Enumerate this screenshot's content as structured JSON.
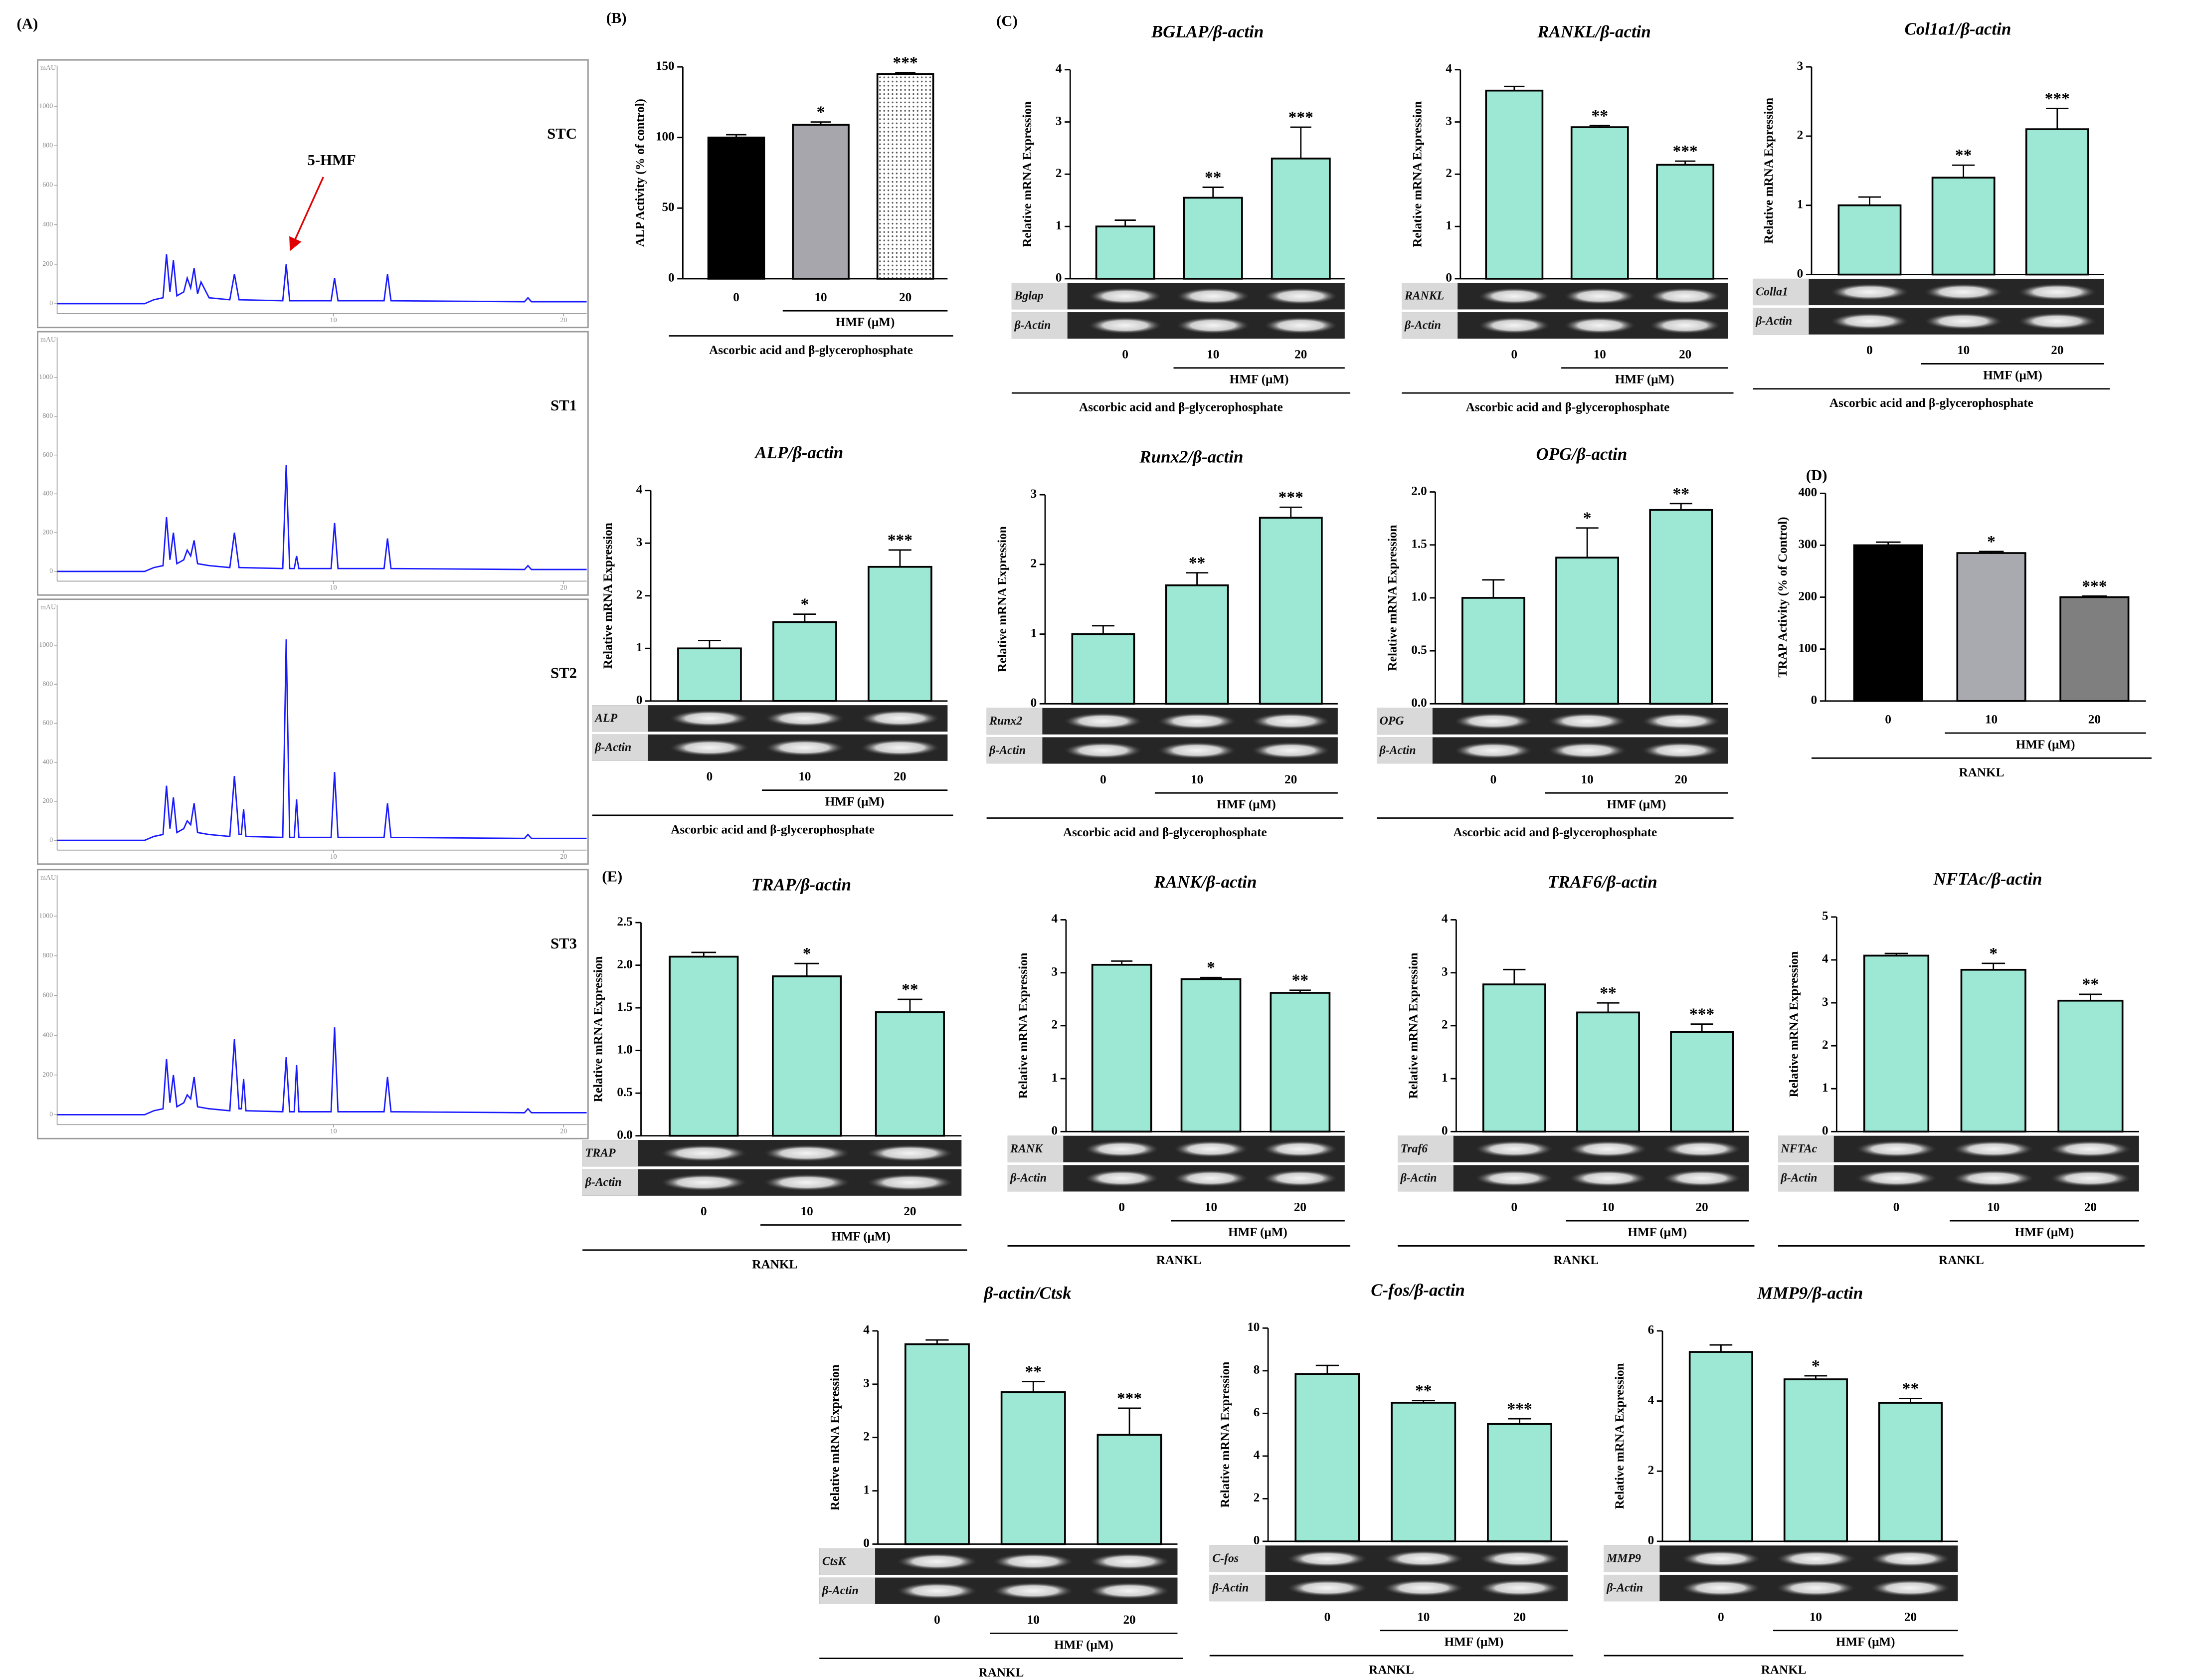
{
  "chart_data": [
    {
      "type": "line",
      "panel": "(A)",
      "title": "STC",
      "ylabel": "mAU",
      "annotation": "5-HMF",
      "xlim": [
        -2,
        21
      ],
      "xticks": [
        10,
        20
      ],
      "ylim": [
        -50,
        1150
      ],
      "yticks": [
        0,
        200,
        400,
        600,
        800,
        1000
      ],
      "x": [
        -2,
        1.8,
        2.2,
        2.6,
        2.75,
        2.9,
        3.05,
        3.2,
        3.5,
        3.65,
        3.8,
        3.95,
        4.1,
        4.25,
        4.6,
        5.5,
        5.7,
        5.9,
        7.8,
        7.95,
        8.1,
        9.9,
        10.05,
        10.2,
        12.2,
        12.35,
        12.5,
        18.3,
        18.45,
        18.6,
        21
      ],
      "series": [
        {
          "color": "#1a1aff",
          "values": [
            0,
            0,
            20,
            30,
            250,
            60,
            220,
            40,
            60,
            130,
            80,
            180,
            50,
            110,
            30,
            20,
            150,
            20,
            15,
            200,
            15,
            15,
            130,
            15,
            15,
            150,
            15,
            10,
            30,
            10,
            10
          ]
        }
      ]
    },
    {
      "type": "line",
      "title": "ST1",
      "ylabel": "mAU",
      "xlim": [
        -2,
        21
      ],
      "xticks": [
        10,
        20
      ],
      "ylim": [
        -50,
        1150
      ],
      "yticks": [
        0,
        200,
        400,
        600,
        800,
        1000
      ],
      "x": [
        -2,
        1.8,
        2.2,
        2.6,
        2.75,
        2.9,
        3.05,
        3.2,
        3.5,
        3.65,
        3.8,
        3.95,
        4.1,
        4.6,
        5.5,
        5.7,
        5.9,
        7.8,
        7.95,
        8.1,
        8.3,
        8.4,
        8.5,
        9.9,
        10.05,
        10.2,
        12.2,
        12.35,
        12.5,
        18.3,
        18.45,
        18.6,
        21
      ],
      "series": [
        {
          "color": "#1a1aff",
          "values": [
            0,
            0,
            20,
            30,
            280,
            60,
            200,
            40,
            60,
            110,
            80,
            160,
            40,
            30,
            20,
            200,
            20,
            15,
            550,
            15,
            15,
            80,
            15,
            15,
            250,
            15,
            15,
            170,
            15,
            10,
            30,
            10,
            10
          ]
        }
      ]
    },
    {
      "type": "line",
      "title": "ST2",
      "ylabel": "mAU",
      "xlim": [
        -2,
        21
      ],
      "xticks": [
        10,
        20
      ],
      "ylim": [
        -50,
        1150
      ],
      "yticks": [
        0,
        200,
        400,
        600,
        800,
        1000
      ],
      "x": [
        -2,
        1.8,
        2.2,
        2.6,
        2.75,
        2.9,
        3.05,
        3.2,
        3.5,
        3.65,
        3.8,
        3.95,
        4.1,
        4.6,
        5.5,
        5.7,
        5.9,
        6.0,
        6.1,
        6.2,
        7.8,
        7.95,
        8.1,
        8.3,
        8.4,
        8.5,
        9.9,
        10.05,
        10.2,
        12.2,
        12.35,
        12.5,
        18.3,
        18.45,
        18.6,
        21
      ],
      "series": [
        {
          "color": "#1a1aff",
          "values": [
            0,
            0,
            20,
            30,
            280,
            60,
            220,
            40,
            60,
            100,
            80,
            190,
            40,
            30,
            20,
            330,
            30,
            30,
            160,
            20,
            15,
            1030,
            15,
            15,
            210,
            15,
            15,
            350,
            15,
            15,
            190,
            15,
            10,
            30,
            10,
            10
          ]
        }
      ]
    },
    {
      "type": "line",
      "title": "ST3",
      "ylabel": "mAU",
      "xlim": [
        -2,
        21
      ],
      "xticks": [
        10,
        20
      ],
      "ylim": [
        -50,
        1150
      ],
      "yticks": [
        0,
        200,
        400,
        600,
        800,
        1000
      ],
      "x": [
        -2,
        1.8,
        2.2,
        2.6,
        2.75,
        2.9,
        3.05,
        3.2,
        3.5,
        3.65,
        3.8,
        3.95,
        4.1,
        4.6,
        5.5,
        5.7,
        5.9,
        6.0,
        6.1,
        6.2,
        7.8,
        7.95,
        8.1,
        8.3,
        8.4,
        8.5,
        9.9,
        10.05,
        10.2,
        12.2,
        12.35,
        12.5,
        18.3,
        18.45,
        18.6,
        21
      ],
      "series": [
        {
          "color": "#1a1aff",
          "values": [
            0,
            0,
            20,
            30,
            280,
            60,
            200,
            40,
            60,
            100,
            80,
            190,
            40,
            30,
            20,
            380,
            30,
            30,
            180,
            20,
            15,
            290,
            15,
            15,
            250,
            15,
            15,
            440,
            15,
            15,
            190,
            15,
            10,
            30,
            10,
            10
          ]
        }
      ]
    },
    {
      "type": "bar",
      "panel": "(B)",
      "ylabel": "ALP Activity (% of control)",
      "categories": [
        "0",
        "10",
        "20"
      ],
      "values": [
        100,
        109,
        145
      ],
      "errors": [
        2,
        2,
        1
      ],
      "significance": [
        null,
        "*",
        "***"
      ],
      "colors": [
        "#000000",
        "#a6a6ac",
        "#ffffff"
      ],
      "patterns": [
        null,
        null,
        "dots"
      ],
      "ylim": [
        0,
        150
      ],
      "yticks": [
        0,
        50,
        100,
        150
      ],
      "groups": [
        "HMF (μM)",
        "Ascorbic acid and β-glycerophosphate"
      ]
    },
    {
      "type": "bar",
      "panel": "(C)",
      "title": "BGLAP/β-actin",
      "ylabel": "Relative mRNA Expression",
      "categories": [
        "0",
        "10",
        "20"
      ],
      "values": [
        1,
        1.55,
        2.3
      ],
      "errors": [
        0.12,
        0.2,
        0.6
      ],
      "significance": [
        null,
        "**",
        "***"
      ],
      "color": "#9de8d4",
      "ylim": [
        0,
        4
      ],
      "yticks": [
        0,
        1,
        2,
        3,
        4
      ],
      "gel_labels": [
        "Bglap",
        "β-Actin"
      ],
      "groups": [
        "HMF (μM)",
        "Ascorbic acid and β-glycerophosphate"
      ]
    },
    {
      "type": "bar",
      "title": "RANKL/β-actin",
      "ylabel": "Relative mRNA Expression",
      "categories": [
        "0",
        "10",
        "20"
      ],
      "values": [
        3.6,
        2.9,
        2.18
      ],
      "errors": [
        0.08,
        0.03,
        0.07
      ],
      "significance": [
        null,
        "**",
        "***"
      ],
      "color": "#9de8d4",
      "ylim": [
        0,
        4
      ],
      "yticks": [
        0,
        1,
        2,
        3,
        4
      ],
      "gel_labels": [
        "RANKL",
        "β-Actin"
      ],
      "groups": [
        "HMF (μM)",
        "Ascorbic acid and β-glycerophosphate"
      ]
    },
    {
      "type": "bar",
      "title": "Col1a1/β-actin",
      "ylabel": "Relative mRNA Expression",
      "categories": [
        "0",
        "10",
        "20"
      ],
      "values": [
        1,
        1.4,
        2.1
      ],
      "errors": [
        0.12,
        0.18,
        0.3
      ],
      "significance": [
        null,
        "**",
        "***"
      ],
      "color": "#9de8d4",
      "ylim": [
        0,
        3
      ],
      "yticks": [
        0,
        1,
        2,
        3
      ],
      "gel_labels": [
        "Colla1",
        "β-Actin"
      ],
      "groups": [
        "HMF (μM)",
        "Ascorbic acid and β-glycerophosphate"
      ]
    },
    {
      "type": "bar",
      "title": "ALP/β-actin",
      "ylabel": "Relative mRNA Expression",
      "categories": [
        "0",
        "10",
        "20"
      ],
      "values": [
        1,
        1.5,
        2.55
      ],
      "errors": [
        0.15,
        0.15,
        0.32
      ],
      "significance": [
        null,
        "*",
        "***"
      ],
      "color": "#9de8d4",
      "ylim": [
        0,
        4
      ],
      "yticks": [
        0,
        1,
        2,
        3,
        4
      ],
      "gel_labels": [
        "ALP",
        "β-Actin"
      ],
      "groups": [
        "HMF (μM)",
        "Ascorbic acid and β-glycerophosphate"
      ]
    },
    {
      "type": "bar",
      "title": "Runx2/β-actin",
      "ylabel": "Relative mRNA Expression",
      "categories": [
        "0",
        "10",
        "20"
      ],
      "values": [
        1,
        1.7,
        2.67
      ],
      "errors": [
        0.12,
        0.18,
        0.15
      ],
      "significance": [
        null,
        "**",
        "***"
      ],
      "color": "#9de8d4",
      "ylim": [
        0,
        3
      ],
      "yticks": [
        0,
        1,
        2,
        3
      ],
      "gel_labels": [
        "Runx2",
        "β-Actin"
      ],
      "groups": [
        "HMF (μM)",
        "Ascorbic acid and β-glycerophosphate"
      ]
    },
    {
      "type": "bar",
      "title": "OPG/β-actin",
      "ylabel": "Relative mRNA Expression",
      "categories": [
        "0",
        "10",
        "20"
      ],
      "values": [
        1,
        1.38,
        1.83
      ],
      "errors": [
        0.17,
        0.28,
        0.06
      ],
      "significance": [
        null,
        "*",
        "**"
      ],
      "color": "#9de8d4",
      "ylim": [
        0,
        2
      ],
      "yticks": [
        {
          "value": 0,
          "label": "0.0"
        },
        0.5,
        {
          "value": 1,
          "label": "1.0"
        },
        1.5,
        {
          "value": 2,
          "label": "2.0"
        }
      ],
      "gel_labels": [
        "OPG",
        "β-Actin"
      ],
      "groups": [
        "HMF (μM)",
        "Ascorbic acid and β-glycerophosphate"
      ]
    },
    {
      "type": "bar",
      "panel": "(D)",
      "ylabel": "TRAP Activity (% of Control)",
      "categories": [
        "0",
        "10",
        "20"
      ],
      "values": [
        300,
        285,
        200
      ],
      "errors": [
        6,
        3,
        2
      ],
      "significance": [
        null,
        "*",
        "***"
      ],
      "colors": [
        "#000000",
        "#a9a9b0",
        "#7f7f7f"
      ],
      "ylim": [
        0,
        400
      ],
      "yticks": [
        0,
        100,
        200,
        300,
        400
      ],
      "groups": [
        "HMF (μM)",
        "RANKL"
      ]
    },
    {
      "type": "bar",
      "panel": "(E)",
      "title": "TRAP/β-actin",
      "ylabel": "Relative mRNA Expression",
      "categories": [
        "0",
        "10",
        "20"
      ],
      "values": [
        2.1,
        1.87,
        1.45
      ],
      "errors": [
        0.05,
        0.15,
        0.15
      ],
      "significance": [
        null,
        "*",
        "**"
      ],
      "color": "#9de8d4",
      "ylim": [
        0,
        2.5
      ],
      "yticks": [
        {
          "value": 0,
          "label": "0.0"
        },
        0.5,
        {
          "value": 1,
          "label": "1.0"
        },
        1.5,
        {
          "value": 2,
          "label": "2.0"
        },
        2.5
      ],
      "gel_labels": [
        "TRAP",
        "β-Actin"
      ],
      "groups": [
        "HMF (μM)",
        "RANKL"
      ]
    },
    {
      "type": "bar",
      "title": "RANK/β-actin",
      "ylabel": "Relative mRNA Expression",
      "categories": [
        "0",
        "10",
        "20"
      ],
      "values": [
        3.15,
        2.88,
        2.62
      ],
      "errors": [
        0.07,
        0.03,
        0.05
      ],
      "significance": [
        null,
        "*",
        "**"
      ],
      "color": "#9de8d4",
      "ylim": [
        0,
        4
      ],
      "yticks": [
        0,
        1,
        2,
        3,
        4
      ],
      "gel_labels": [
        "RANK",
        "β-Actin"
      ],
      "groups": [
        "HMF (μM)",
        "RANKL"
      ]
    },
    {
      "type": "bar",
      "title": "TRAF6/β-actin",
      "ylabel": "Relative mRNA Expression",
      "categories": [
        "0",
        "10",
        "20"
      ],
      "values": [
        2.78,
        2.25,
        1.88
      ],
      "errors": [
        0.28,
        0.18,
        0.15
      ],
      "significance": [
        null,
        "**",
        "***"
      ],
      "color": "#9de8d4",
      "ylim": [
        0,
        4
      ],
      "yticks": [
        0,
        1,
        2,
        3,
        4
      ],
      "gel_labels": [
        "Traf6",
        "β-Actin"
      ],
      "groups": [
        "HMF (μM)",
        "RANKL"
      ]
    },
    {
      "type": "bar",
      "title": "NFTAc/β-actin",
      "ylabel": "Relative mRNA Expression",
      "categories": [
        "0",
        "10",
        "20"
      ],
      "values": [
        4.1,
        3.77,
        3.05
      ],
      "errors": [
        0.05,
        0.15,
        0.15
      ],
      "significance": [
        null,
        "*",
        "**"
      ],
      "color": "#9de8d4",
      "ylim": [
        0,
        5
      ],
      "yticks": [
        0,
        1,
        2,
        3,
        4,
        5
      ],
      "gel_labels": [
        "NFTAc",
        "β-Actin"
      ],
      "groups": [
        "HMF (μM)",
        "RANKL"
      ]
    },
    {
      "type": "bar",
      "title": "β-actin/Ctsk",
      "ylabel": "Relative mRNA Expression",
      "categories": [
        "0",
        "10",
        "20"
      ],
      "values": [
        3.75,
        2.85,
        2.05
      ],
      "errors": [
        0.08,
        0.2,
        0.5
      ],
      "significance": [
        null,
        "**",
        "***"
      ],
      "color": "#9de8d4",
      "ylim": [
        0,
        4
      ],
      "yticks": [
        0,
        1,
        2,
        3,
        4
      ],
      "gel_labels": [
        "CtsK",
        "β-Actin"
      ],
      "groups": [
        "HMF (μM)",
        "RANKL"
      ]
    },
    {
      "type": "bar",
      "title": "C-fos/β-actin",
      "ylabel": "Relative mRNA Expression",
      "categories": [
        "0",
        "10",
        "20"
      ],
      "values": [
        7.85,
        6.5,
        5.5
      ],
      "errors": [
        0.4,
        0.1,
        0.25
      ],
      "significance": [
        null,
        "**",
        "***"
      ],
      "color": "#9de8d4",
      "ylim": [
        0,
        10
      ],
      "yticks": [
        0,
        2,
        4,
        6,
        8,
        10
      ],
      "gel_labels": [
        "C-fos",
        "β-Actin"
      ],
      "groups": [
        "HMF (μM)",
        "RANKL"
      ]
    },
    {
      "type": "bar",
      "title": "MMP9/β-actin",
      "ylabel": "Relative mRNA Expression",
      "categories": [
        "0",
        "10",
        "20"
      ],
      "values": [
        5.4,
        4.62,
        3.95
      ],
      "errors": [
        0.2,
        0.1,
        0.12
      ],
      "significance": [
        null,
        "*",
        "**"
      ],
      "color": "#9de8d4",
      "ylim": [
        0,
        6
      ],
      "yticks": [
        0,
        2,
        4,
        6
      ],
      "gel_labels": [
        "MMP9",
        "β-Actin"
      ],
      "groups": [
        "HMF (μM)",
        "RANKL"
      ]
    }
  ]
}
